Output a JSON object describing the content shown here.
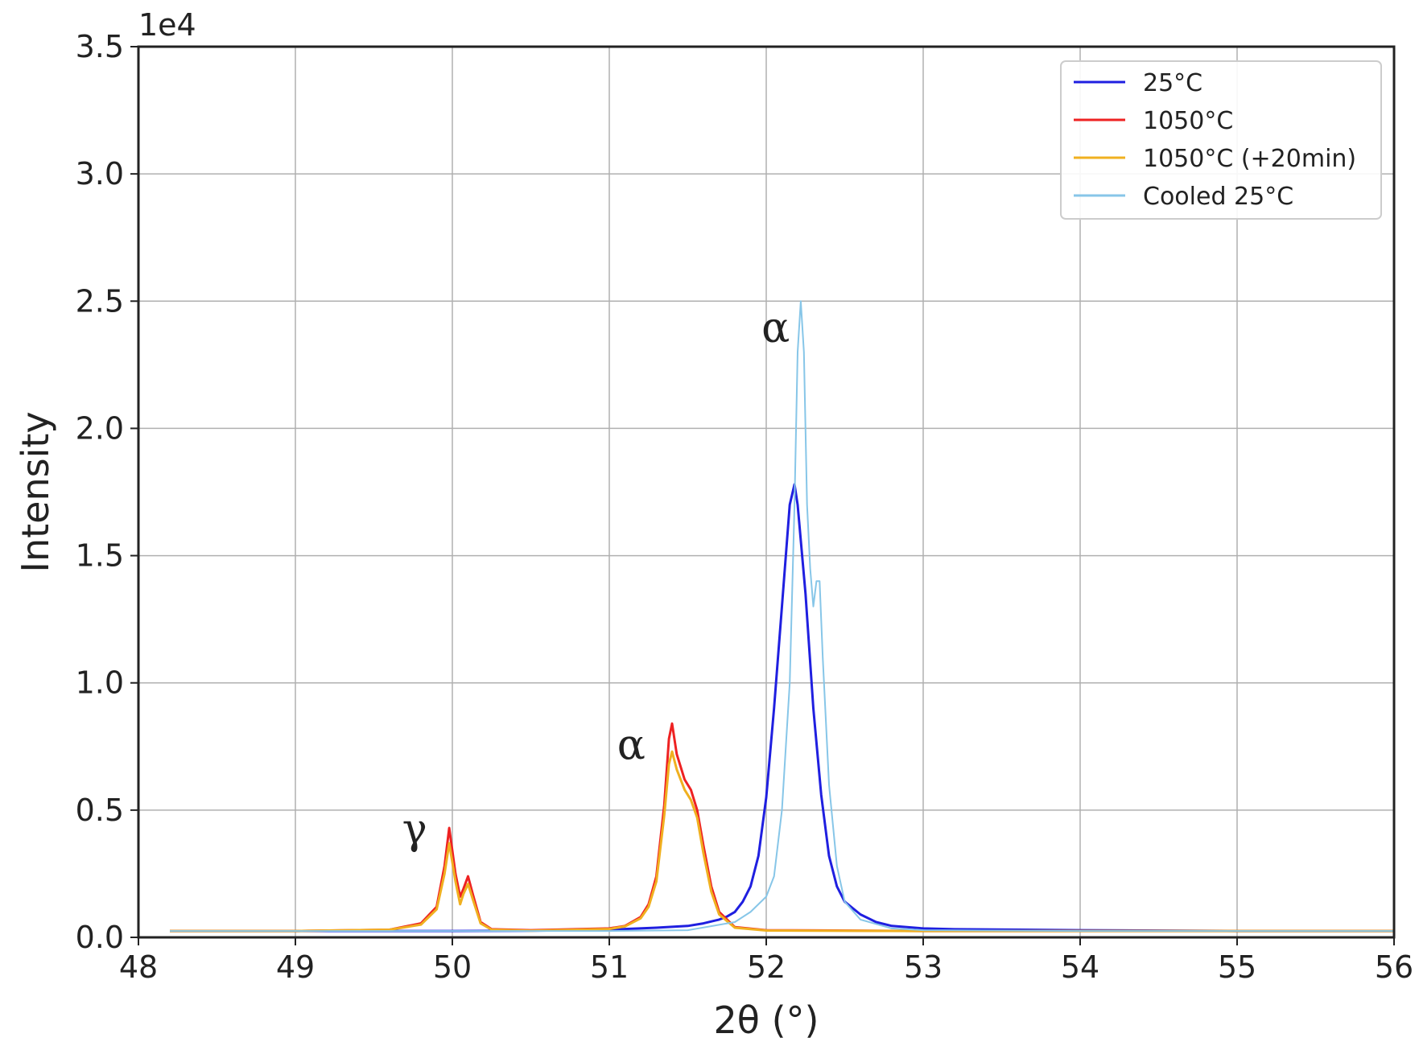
{
  "chart_data": {
    "type": "line",
    "title": "",
    "xlabel": "2θ (°)",
    "ylabel": "Intensity",
    "y_offset_text": "1e4",
    "xlim": [
      48,
      56
    ],
    "ylim": [
      0,
      35000
    ],
    "x_ticks": [
      48,
      49,
      50,
      51,
      52,
      53,
      54,
      55,
      56
    ],
    "x_tick_labels": [
      "48",
      "49",
      "50",
      "51",
      "52",
      "53",
      "54",
      "55",
      "56"
    ],
    "y_ticks": [
      0,
      5000,
      10000,
      15000,
      20000,
      25000,
      30000,
      35000
    ],
    "y_tick_labels": [
      "0.0",
      "0.5",
      "1.0",
      "1.5",
      "2.0",
      "2.5",
      "3.0",
      "3.5"
    ],
    "grid": true,
    "legend_position": "top-right",
    "series": [
      {
        "name": "25°C",
        "color": "#1f1fe0",
        "width": 3,
        "x": [
          48.2,
          49.0,
          50.0,
          50.5,
          51.0,
          51.3,
          51.5,
          51.6,
          51.7,
          51.75,
          51.8,
          51.85,
          51.9,
          51.95,
          52.0,
          52.05,
          52.1,
          52.15,
          52.18,
          52.2,
          52.25,
          52.3,
          52.35,
          52.4,
          52.45,
          52.5,
          52.6,
          52.7,
          52.8,
          53.0,
          53.2,
          54.0,
          55.0,
          56.0
        ],
        "y": [
          250,
          250,
          250,
          260,
          300,
          380,
          450,
          550,
          700,
          820,
          1000,
          1400,
          2000,
          3200,
          5500,
          9000,
          13000,
          17000,
          17800,
          17000,
          13500,
          9000,
          5600,
          3200,
          2000,
          1400,
          900,
          600,
          450,
          350,
          320,
          280,
          250,
          250
        ]
      },
      {
        "name": "1050°C",
        "color": "#ee2222",
        "width": 3,
        "x": [
          48.2,
          49.0,
          49.6,
          49.8,
          49.9,
          49.95,
          49.98,
          50.02,
          50.05,
          50.07,
          50.1,
          50.13,
          50.18,
          50.25,
          50.5,
          51.0,
          51.1,
          51.2,
          51.25,
          51.3,
          51.35,
          51.38,
          51.4,
          51.43,
          51.48,
          51.52,
          51.56,
          51.6,
          51.65,
          51.7,
          51.8,
          52.0,
          53.0,
          54.0,
          55.0,
          56.0
        ],
        "y": [
          250,
          250,
          300,
          550,
          1200,
          2800,
          4300,
          2500,
          1600,
          1900,
          2400,
          1700,
          600,
          320,
          280,
          350,
          450,
          800,
          1300,
          2400,
          5200,
          7800,
          8400,
          7200,
          6200,
          5800,
          5000,
          3600,
          2000,
          1000,
          400,
          280,
          250,
          250,
          250,
          250
        ]
      },
      {
        "name": "1050°C (+20min)",
        "color": "#f0b020",
        "width": 3,
        "x": [
          48.2,
          49.0,
          49.6,
          49.8,
          49.9,
          49.95,
          49.98,
          50.02,
          50.05,
          50.07,
          50.1,
          50.13,
          50.18,
          50.25,
          50.5,
          51.0,
          51.1,
          51.2,
          51.25,
          51.3,
          51.35,
          51.38,
          51.4,
          51.43,
          51.48,
          51.52,
          51.56,
          51.6,
          51.65,
          51.7,
          51.8,
          52.0,
          53.0,
          54.0,
          55.0,
          56.0
        ],
        "y": [
          250,
          250,
          300,
          500,
          1100,
          2500,
          3700,
          2200,
          1300,
          1700,
          2100,
          1500,
          550,
          300,
          260,
          330,
          430,
          750,
          1200,
          2200,
          4800,
          6800,
          7300,
          6600,
          5800,
          5400,
          4700,
          3300,
          1800,
          900,
          380,
          270,
          250,
          250,
          250,
          250
        ]
      },
      {
        "name": "Cooled 25°C",
        "color": "#87c6e8",
        "width": 2,
        "x": [
          48.2,
          49.0,
          50.0,
          51.0,
          51.5,
          51.8,
          51.9,
          52.0,
          52.05,
          52.1,
          52.15,
          52.18,
          52.2,
          52.22,
          52.24,
          52.26,
          52.28,
          52.3,
          52.32,
          52.34,
          52.36,
          52.4,
          52.45,
          52.5,
          52.6,
          52.8,
          53.0,
          54.0,
          55.0,
          56.0
        ],
        "y": [
          250,
          250,
          250,
          250,
          280,
          600,
          1000,
          1600,
          2400,
          5000,
          10000,
          17000,
          23000,
          25000,
          23000,
          17000,
          14500,
          13000,
          14000,
          14000,
          11000,
          6000,
          2800,
          1400,
          700,
          350,
          280,
          250,
          250,
          250
        ]
      }
    ],
    "annotations": [
      {
        "text": "γ",
        "x": 49.68,
        "y": 3700
      },
      {
        "text": "α",
        "x": 51.05,
        "y": 7000
      },
      {
        "text": "α",
        "x": 51.97,
        "y": 23400
      }
    ]
  }
}
